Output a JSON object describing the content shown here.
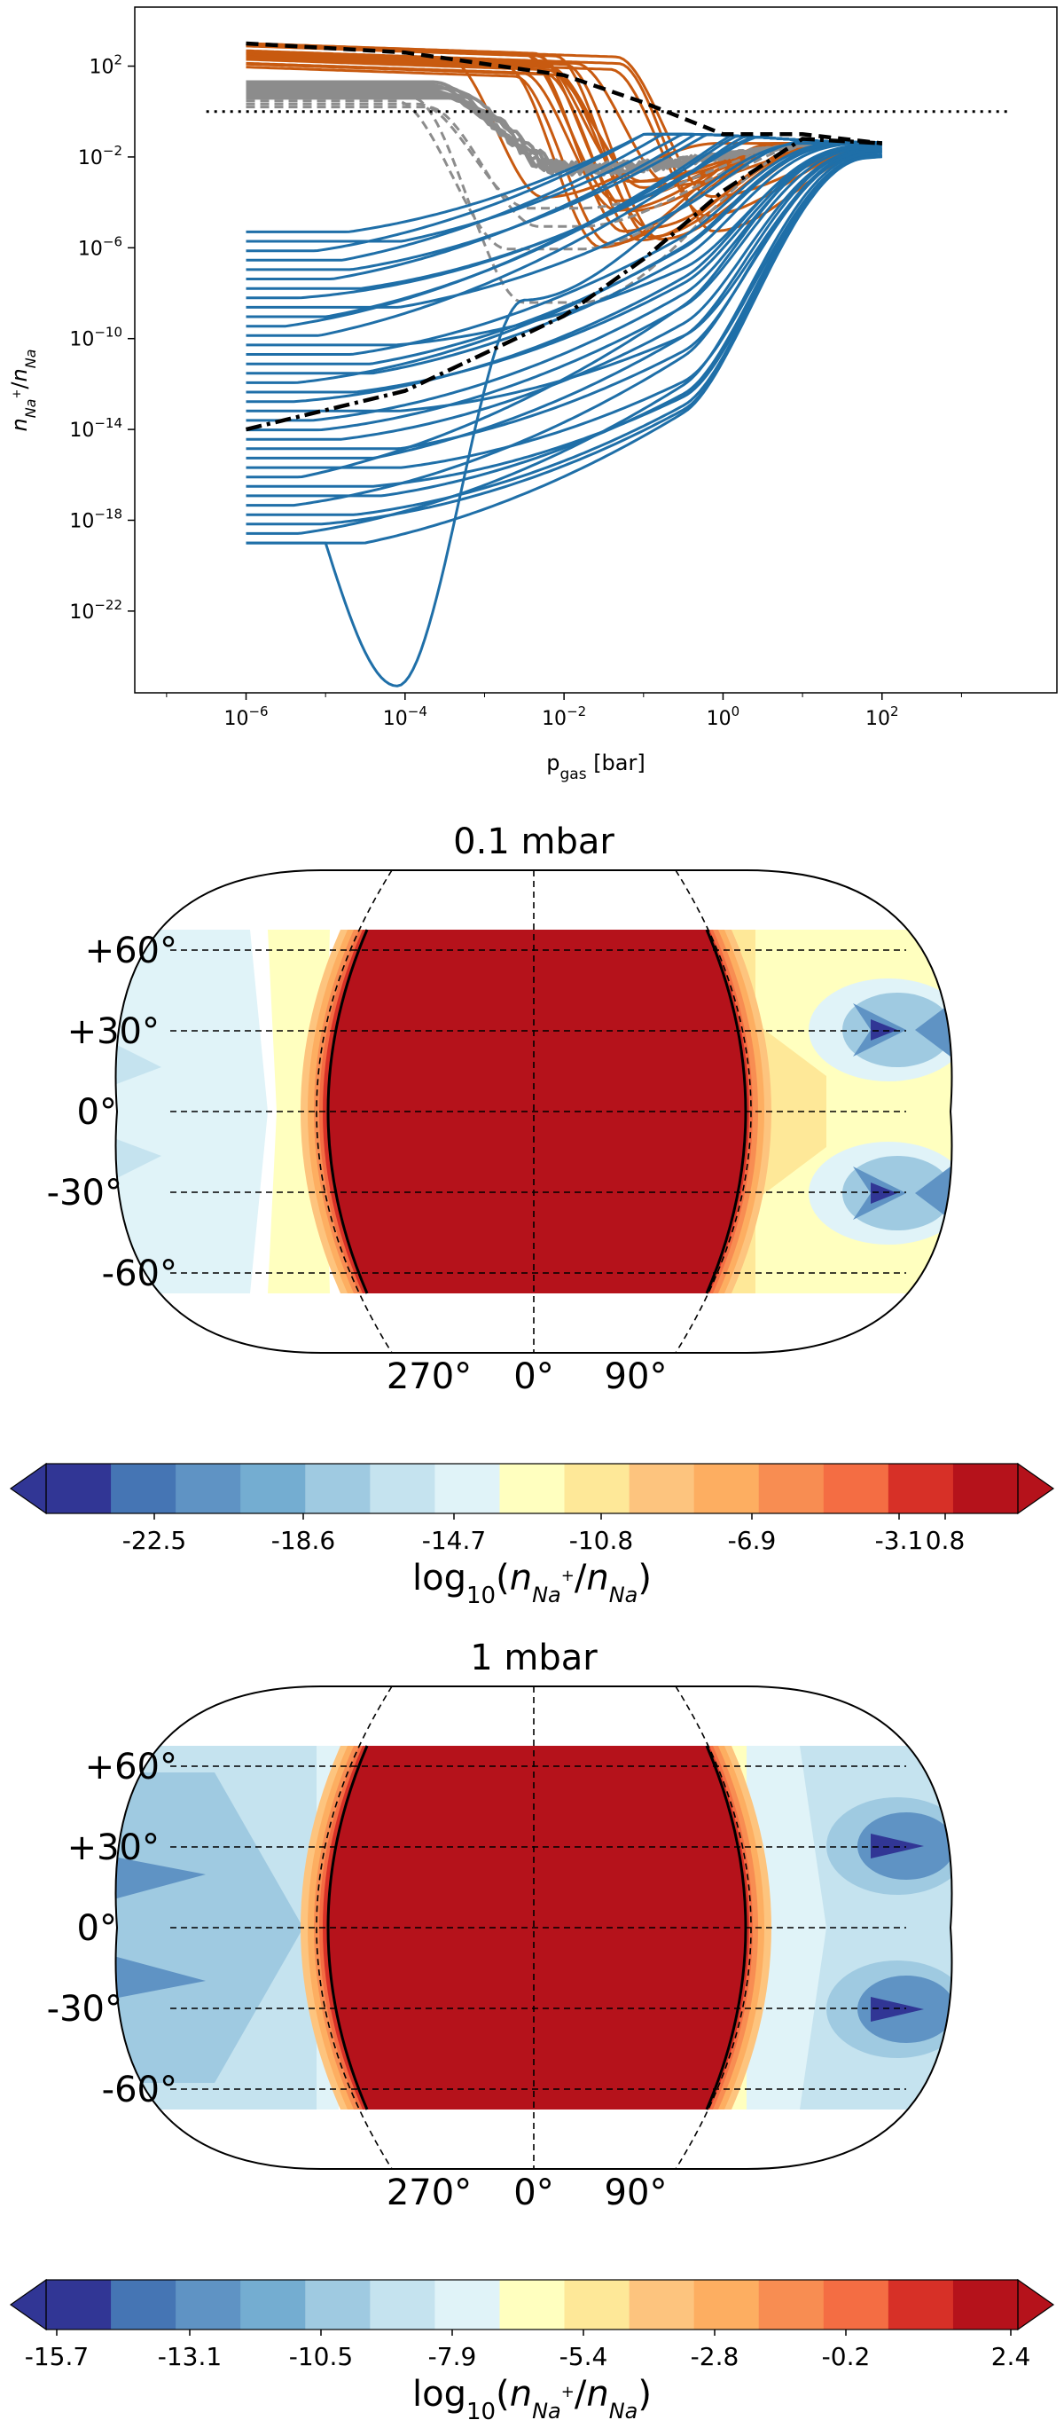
{
  "chart_data": [
    {
      "type": "line",
      "xscale": "log",
      "yscale": "log",
      "xlabel_main": "p",
      "xlabel_sub": "gas",
      "xlabel_unit": " [bar]",
      "ylabel": "n_Na+/n_Na",
      "xlim_exp": [
        -7.4,
        4.2
      ],
      "ylim_exp": [
        -25.6,
        4.6
      ],
      "x_ticks": [
        {
          "base": "10",
          "exp": "−6",
          "v": -6
        },
        {
          "base": "10",
          "exp": "−4",
          "v": -4
        },
        {
          "base": "10",
          "exp": "−2",
          "v": -2
        },
        {
          "base": "10",
          "exp": "0",
          "v": 0
        },
        {
          "base": "10",
          "exp": "2",
          "v": 2
        }
      ],
      "y_ticks": [
        {
          "base": "10",
          "exp": "2",
          "v": 2
        },
        {
          "base": "10",
          "exp": "−2",
          "v": -2
        },
        {
          "base": "10",
          "exp": "−6",
          "v": -6
        },
        {
          "base": "10",
          "exp": "−10",
          "v": -10
        },
        {
          "base": "10",
          "exp": "−14",
          "v": -14
        },
        {
          "base": "10",
          "exp": "−18",
          "v": -18
        },
        {
          "base": "10",
          "exp": "−22",
          "v": -22
        }
      ],
      "reference_line": {
        "y_exp": 0,
        "x_range_exp": [
          -6.5,
          3.6
        ],
        "style": "dotted",
        "color": "#000000"
      },
      "colors": {
        "dayside": "#c85a10",
        "terminator": "#8c8c8c",
        "nightside": "#1f6fa8",
        "mean": "#000000"
      },
      "series_groups": [
        {
          "name": "dayside (orange)",
          "n": 18,
          "start_exp": [
            3.0,
            1.9
          ],
          "mid_exp": [
            -3.5,
            -1.2
          ],
          "end_exp": -1.4,
          "width": 3
        },
        {
          "name": "terminator solid (grey)",
          "n": 6,
          "start_exp": [
            1.3,
            0.6
          ],
          "end_exp": -1.4,
          "width": 4
        },
        {
          "name": "terminator dashed (grey)",
          "n": 4,
          "start_exp": [
            0.6,
            0.2
          ],
          "end_exp": -1.4,
          "width": 3
        },
        {
          "name": "nightside (blue)",
          "n": 34,
          "start_exp": [
            -19.0,
            -5.3
          ],
          "end_exp": -1.4,
          "width": 3
        }
      ],
      "mean_dayside_exp": [
        [
          -6,
          3.0
        ],
        [
          -4,
          2.6
        ],
        [
          -2,
          1.6
        ],
        [
          -1,
          0.4
        ],
        [
          0,
          -1.0
        ],
        [
          1,
          -1.0
        ],
        [
          2,
          -1.4
        ]
      ],
      "mean_nightside_exp": [
        [
          -6,
          -14.0
        ],
        [
          -4,
          -12.3
        ],
        [
          -2,
          -9.0
        ],
        [
          -1,
          -6.5
        ],
        [
          0,
          -3.5
        ],
        [
          1,
          -1.2
        ],
        [
          2,
          -1.4
        ]
      ]
    },
    {
      "type": "heatmap",
      "title": "0.1 mbar",
      "lat_labels": [
        "+60°",
        "+30°",
        "0°",
        "-30°",
        "-60°"
      ],
      "lon_labels": [
        "270°",
        "0°",
        "90°"
      ],
      "colorbar_label": "log₁₀(n_Na+/n_Na)",
      "colorbar_ticks": [
        "-22.5",
        "-18.6",
        "-14.7",
        "-10.8",
        "-6.9",
        "-3.1",
        "0.8"
      ],
      "colorbar_colors": [
        "#313695",
        "#4575b4",
        "#5f93c4",
        "#74add1",
        "#9fcae1",
        "#c5e3ef",
        "#e0f3f8",
        "#ffffbf",
        "#fee898",
        "#fdc47e",
        "#fdae61",
        "#f88d52",
        "#f46d43",
        "#d73027",
        "#b5121b"
      ]
    },
    {
      "type": "heatmap",
      "title": "1 mbar",
      "lat_labels": [
        "+60°",
        "+30°",
        "0°",
        "-30°",
        "-60°"
      ],
      "lon_labels": [
        "270°",
        "0°",
        "90°"
      ],
      "colorbar_label": "log₁₀(n_Na+/n_Na)",
      "colorbar_ticks": [
        "-15.7",
        "-13.1",
        "-10.5",
        "-7.9",
        "-5.4",
        "-2.8",
        "-0.2",
        "2.4"
      ],
      "colorbar_colors": [
        "#313695",
        "#4575b4",
        "#5f93c4",
        "#74add1",
        "#9fcae1",
        "#c5e3ef",
        "#e0f3f8",
        "#ffffbf",
        "#fee898",
        "#fdc47e",
        "#fdae61",
        "#f88d52",
        "#f46d43",
        "#d73027",
        "#b5121b"
      ]
    }
  ]
}
